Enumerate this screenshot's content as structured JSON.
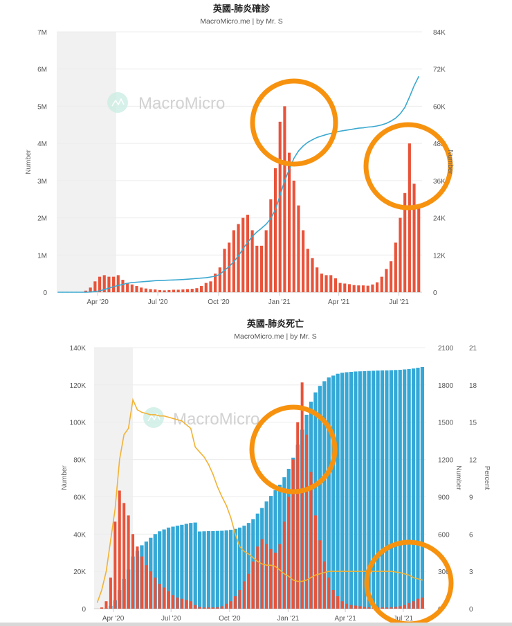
{
  "chart_data": [
    {
      "type": "bar+line",
      "title": "英國-肺炎確診",
      "subtitle": "MacroMicro.me | by Mr. S",
      "watermark": "MacroMicro",
      "xlabel": "",
      "ylabel_left": "Number",
      "ylabel_right": "Number",
      "ylim_left": [
        0,
        7000000
      ],
      "ylim_right": [
        0,
        84000
      ],
      "x_range": [
        "2020-01-30",
        "2021-08-05"
      ],
      "shaded_range": [
        "2020-01-30",
        "2020-04-29"
      ],
      "grid": true,
      "x_ticks": [
        {
          "date": "2020-04-01",
          "label": "Apr '20"
        },
        {
          "date": "2020-07-01",
          "label": "Jul '20"
        },
        {
          "date": "2020-10-01",
          "label": "Oct '20"
        },
        {
          "date": "2021-01-01",
          "label": "Jan '21"
        },
        {
          "date": "2021-04-01",
          "label": "Apr '21"
        },
        {
          "date": "2021-07-01",
          "label": "Jul '21"
        }
      ],
      "y_ticks_left": [
        "0",
        "1M",
        "2M",
        "3M",
        "4M",
        "5M",
        "6M",
        "7M"
      ],
      "y_ticks_right": [
        "0",
        "12K",
        "24K",
        "36K",
        "48K",
        "60K",
        "72K",
        "84K"
      ],
      "colors": {
        "bars": "#E8533A",
        "line": "#3AA8D0",
        "annotation": "#F7920F"
      },
      "dates": [
        "2020-02-01",
        "2020-02-08",
        "2020-02-15",
        "2020-02-22",
        "2020-02-29",
        "2020-03-07",
        "2020-03-14",
        "2020-03-21",
        "2020-03-28",
        "2020-04-04",
        "2020-04-11",
        "2020-04-18",
        "2020-04-25",
        "2020-05-02",
        "2020-05-09",
        "2020-05-16",
        "2020-05-23",
        "2020-05-30",
        "2020-06-06",
        "2020-06-13",
        "2020-06-20",
        "2020-06-27",
        "2020-07-04",
        "2020-07-11",
        "2020-07-18",
        "2020-07-25",
        "2020-08-01",
        "2020-08-08",
        "2020-08-15",
        "2020-08-22",
        "2020-08-29",
        "2020-09-05",
        "2020-09-12",
        "2020-09-19",
        "2020-09-26",
        "2020-10-03",
        "2020-10-10",
        "2020-10-17",
        "2020-10-24",
        "2020-10-31",
        "2020-11-07",
        "2020-11-14",
        "2020-11-21",
        "2020-11-28",
        "2020-12-05",
        "2020-12-12",
        "2020-12-19",
        "2020-12-26",
        "2021-01-02",
        "2021-01-09",
        "2021-01-16",
        "2021-01-23",
        "2021-01-30",
        "2021-02-06",
        "2021-02-13",
        "2021-02-20",
        "2021-02-27",
        "2021-03-06",
        "2021-03-13",
        "2021-03-20",
        "2021-03-27",
        "2021-04-03",
        "2021-04-10",
        "2021-04-17",
        "2021-04-24",
        "2021-05-01",
        "2021-05-08",
        "2021-05-15",
        "2021-05-22",
        "2021-05-29",
        "2021-06-05",
        "2021-06-12",
        "2021-06-19",
        "2021-06-26",
        "2021-07-03",
        "2021-07-10",
        "2021-07-17",
        "2021-07-24",
        "2021-07-31"
      ],
      "series": [
        {
          "kind": "bar",
          "axis": "right",
          "values": [
            0,
            0,
            0,
            0,
            20,
            100,
            500,
            1500,
            3500,
            5000,
            5500,
            5000,
            5000,
            5500,
            4000,
            3000,
            2500,
            2000,
            1500,
            1200,
            1000,
            900,
            700,
            600,
            700,
            800,
            800,
            900,
            1000,
            1100,
            1300,
            2000,
            3000,
            3500,
            6000,
            8000,
            14000,
            16000,
            20000,
            22000,
            24000,
            25000,
            20000,
            15000,
            15000,
            20000,
            30000,
            40000,
            55000,
            60000,
            45000,
            36000,
            28000,
            20000,
            14000,
            11000,
            8000,
            6000,
            5500,
            5500,
            4500,
            3000,
            2800,
            2600,
            2300,
            2200,
            2200,
            2100,
            2500,
            3200,
            5000,
            7500,
            10000,
            16000,
            24000,
            32000,
            48000,
            35000,
            27000
          ]
        },
        {
          "kind": "line",
          "axis": "left",
          "values": [
            0,
            0,
            0,
            0,
            0,
            0,
            1000,
            5000,
            17000,
            40000,
            70000,
            110000,
            150000,
            180000,
            210000,
            240000,
            260000,
            270000,
            280000,
            290000,
            300000,
            310000,
            315000,
            320000,
            325000,
            330000,
            335000,
            340000,
            350000,
            360000,
            370000,
            380000,
            390000,
            410000,
            430000,
            480000,
            590000,
            690000,
            820000,
            980000,
            1170000,
            1340000,
            1500000,
            1620000,
            1720000,
            1830000,
            1980000,
            2220000,
            2600000,
            3000000,
            3300000,
            3600000,
            3800000,
            3930000,
            4030000,
            4100000,
            4160000,
            4200000,
            4240000,
            4270000,
            4300000,
            4330000,
            4350000,
            4370000,
            4390000,
            4410000,
            4420000,
            4440000,
            4450000,
            4470000,
            4500000,
            4540000,
            4600000,
            4680000,
            4800000,
            4970000,
            5250000,
            5550000,
            5800000
          ]
        }
      ]
    },
    {
      "type": "bar+line",
      "title": "英國-肺炎死亡",
      "subtitle": "MacroMicro.me | by Mr. S",
      "watermark": "MacroMicro",
      "xlabel": "",
      "ylabel_left": "Number",
      "ylabel_right": "Number",
      "ylabel_right2": "Percent",
      "ylim_left": [
        0,
        140000
      ],
      "ylim_right": [
        0,
        2100
      ],
      "ylim_right2": [
        0,
        21
      ],
      "x_range": [
        "2020-03-02",
        "2021-08-05"
      ],
      "shaded_range": [
        "2020-03-02",
        "2020-05-02"
      ],
      "grid": true,
      "x_ticks": [
        {
          "date": "2020-04-01",
          "label": "Apr '20"
        },
        {
          "date": "2020-07-01",
          "label": "Jul '20"
        },
        {
          "date": "2020-10-01",
          "label": "Oct '20"
        },
        {
          "date": "2021-01-01",
          "label": "Jan '21"
        },
        {
          "date": "2021-04-01",
          "label": "Apr '21"
        },
        {
          "date": "2021-07-01",
          "label": "Jul '21"
        }
      ],
      "y_ticks_left": [
        "0",
        "20K",
        "40K",
        "60K",
        "80K",
        "100K",
        "120K",
        "140K"
      ],
      "y_ticks_right": [
        "0",
        "300",
        "600",
        "900",
        "1200",
        "1500",
        "1800",
        "2100"
      ],
      "y_ticks_right2": [
        "0",
        "3",
        "6",
        "9",
        "12",
        "15",
        "18",
        "21"
      ],
      "colors": {
        "cum_bars": "#35A8D6",
        "daily_bars": "#E8533A",
        "percent_line": "#F2B234",
        "annotation": "#F7920F"
      },
      "dates": [
        "2020-03-07",
        "2020-03-14",
        "2020-03-21",
        "2020-03-28",
        "2020-04-04",
        "2020-04-11",
        "2020-04-18",
        "2020-04-25",
        "2020-05-02",
        "2020-05-09",
        "2020-05-16",
        "2020-05-23",
        "2020-05-30",
        "2020-06-06",
        "2020-06-13",
        "2020-06-20",
        "2020-06-27",
        "2020-07-04",
        "2020-07-11",
        "2020-07-18",
        "2020-07-25",
        "2020-08-01",
        "2020-08-08",
        "2020-08-15",
        "2020-08-22",
        "2020-08-29",
        "2020-09-05",
        "2020-09-12",
        "2020-09-19",
        "2020-09-26",
        "2020-10-03",
        "2020-10-10",
        "2020-10-17",
        "2020-10-24",
        "2020-10-31",
        "2020-11-07",
        "2020-11-14",
        "2020-11-21",
        "2020-11-28",
        "2020-12-05",
        "2020-12-12",
        "2020-12-19",
        "2020-12-26",
        "2021-01-02",
        "2021-01-09",
        "2021-01-16",
        "2021-01-23",
        "2021-01-30",
        "2021-02-06",
        "2021-02-13",
        "2021-02-20",
        "2021-02-27",
        "2021-03-06",
        "2021-03-13",
        "2021-03-20",
        "2021-03-27",
        "2021-04-03",
        "2021-04-10",
        "2021-04-17",
        "2021-04-24",
        "2021-05-01",
        "2021-05-08",
        "2021-05-15",
        "2021-05-22",
        "2021-05-29",
        "2021-06-05",
        "2021-06-12",
        "2021-06-19",
        "2021-06-26",
        "2021-07-03",
        "2021-07-10",
        "2021-07-17",
        "2021-07-24",
        "2021-07-31"
      ],
      "series": [
        {
          "kind": "bar",
          "axis": "left",
          "values": [
            0,
            20,
            200,
            1500,
            4500,
            10000,
            16000,
            21000,
            28000,
            31000,
            34000,
            36000,
            38000,
            40000,
            41500,
            42500,
            43500,
            44000,
            44500,
            45000,
            45500,
            46000,
            46200,
            41400,
            41500,
            41600,
            41600,
            41700,
            41800,
            42000,
            42300,
            42800,
            43500,
            44500,
            46000,
            48000,
            51000,
            54000,
            57500,
            60500,
            63500,
            66500,
            70500,
            75000,
            81000,
            88000,
            96000,
            104000,
            111000,
            116000,
            119500,
            122000,
            124000,
            125000,
            126000,
            126500,
            126800,
            127000,
            127200,
            127300,
            127400,
            127500,
            127600,
            127700,
            127800,
            127800,
            127900,
            128000,
            128100,
            128300,
            128500,
            128800,
            129200,
            129600
          ]
        },
        {
          "kind": "bar",
          "axis": "right",
          "values": [
            0,
            10,
            60,
            250,
            700,
            950,
            850,
            750,
            600,
            500,
            420,
            350,
            300,
            250,
            200,
            170,
            140,
            110,
            90,
            80,
            70,
            60,
            30,
            15,
            10,
            10,
            10,
            12,
            20,
            40,
            60,
            100,
            150,
            220,
            280,
            380,
            500,
            560,
            520,
            480,
            450,
            520,
            700,
            900,
            1200,
            1500,
            1820,
            1400,
            1100,
            750,
            550,
            380,
            250,
            150,
            100,
            60,
            40,
            30,
            25,
            20,
            15,
            12,
            10,
            10,
            10,
            10,
            12,
            15,
            20,
            30,
            45,
            60,
            80,
            90
          ]
        },
        {
          "kind": "line",
          "axis": "right2",
          "values": [
            0.5,
            1.5,
            3,
            5.5,
            8,
            12,
            14,
            14.5,
            16.8,
            16,
            15.8,
            15.7,
            15.6,
            15.6,
            15.5,
            15.5,
            15.4,
            15.3,
            15.2,
            15.1,
            14.8,
            14.5,
            13,
            12.6,
            12.2,
            11.6,
            10.8,
            9.8,
            9,
            8.3,
            7.3,
            6,
            5,
            4.6,
            4.4,
            4.1,
            3.8,
            3.6,
            3.5,
            3.5,
            3.4,
            3.1,
            2.8,
            2.6,
            2.3,
            2.2,
            2.2,
            2.3,
            2.5,
            2.7,
            2.8,
            2.9,
            3,
            3,
            3,
            3,
            3,
            3,
            3,
            3,
            3,
            3,
            3,
            3,
            3,
            3,
            3,
            2.95,
            2.9,
            2.8,
            2.7,
            2.5,
            2.4,
            2.3
          ]
        }
      ]
    }
  ]
}
